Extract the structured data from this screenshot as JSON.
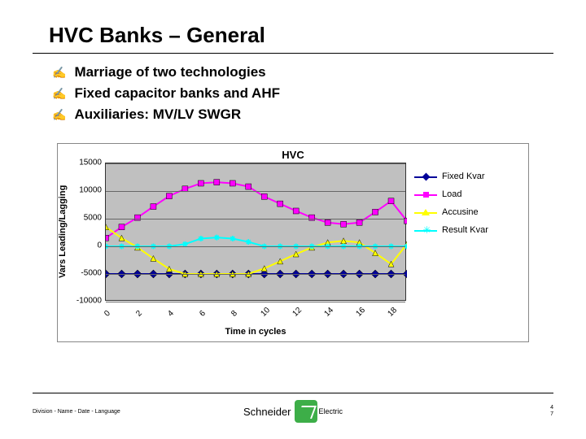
{
  "title": "HVC Banks – General",
  "bullets": [
    "Marriage of two technologies",
    "Fixed capacitor banks and  AHF",
    "Auxiliaries: MV/LV SWGR"
  ],
  "chart": {
    "type": "line",
    "title": "HVC",
    "ylabel": "Vars Leading/Lagging",
    "xlabel": "Time in cycles",
    "background_color": "#c0c0c0",
    "grid_color": "#666666",
    "ylim": [
      -10000,
      15000
    ],
    "yticks": [
      -10000,
      -5000,
      0,
      5000,
      10000,
      15000
    ],
    "xticks": [
      0,
      2,
      4,
      6,
      8,
      10,
      12,
      14,
      16,
      18
    ],
    "x": [
      0,
      1,
      2,
      3,
      4,
      5,
      6,
      7,
      8,
      9,
      10,
      11,
      12,
      13,
      14,
      15,
      16,
      17,
      18,
      19
    ],
    "series": [
      {
        "name": "Fixed Kvar",
        "color": "#000099",
        "marker": "diamond",
        "y": [
          -5000,
          -5000,
          -5000,
          -5000,
          -5000,
          -5000,
          -5000,
          -5000,
          -5000,
          -5000,
          -5000,
          -5000,
          -5000,
          -5000,
          -5000,
          -5000,
          -5000,
          -5000,
          -5000,
          -5000
        ]
      },
      {
        "name": "Load",
        "color": "#ff00ff",
        "marker": "square",
        "y": [
          1500,
          3500,
          5200,
          7200,
          9100,
          10400,
          11400,
          11600,
          11400,
          10800,
          9000,
          7700,
          6400,
          5200,
          4300,
          4000,
          4300,
          6200,
          8200,
          4600
        ]
      },
      {
        "name": "Accusine",
        "color": "#ffff00",
        "marker": "triangle",
        "y": [
          3500,
          1500,
          -200,
          -2200,
          -4100,
          -5000,
          -5000,
          -5000,
          -5000,
          -5000,
          -4000,
          -2700,
          -1400,
          -200,
          700,
          1000,
          700,
          -1200,
          -3200,
          400
        ]
      },
      {
        "name": "Result Kvar",
        "color": "#00ffff",
        "marker": "star",
        "y": [
          0,
          0,
          0,
          0,
          0,
          400,
          1400,
          1600,
          1400,
          800,
          0,
          0,
          0,
          0,
          0,
          0,
          0,
          0,
          0,
          0
        ]
      }
    ],
    "legend_position": "right",
    "line_width": 2,
    "marker_size": 7,
    "title_fontsize": 13,
    "label_fontsize": 11,
    "tick_fontsize": 10
  },
  "footer": {
    "left": "Division - Name - Date - Language",
    "logo_text": "Schneider",
    "logo_sub": "Electric",
    "logo_color": "#3dae48",
    "page": "4\n7"
  }
}
